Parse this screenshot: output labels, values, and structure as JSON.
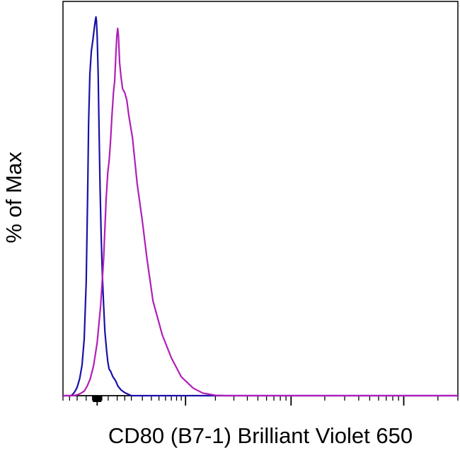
{
  "chart_data": {
    "type": "line",
    "title": "",
    "xlabel": "CD80 (B7-1) Brilliant Violet 650",
    "ylabel": "% of Max",
    "xscale": "log",
    "xlim": [
      -200,
      300000
    ],
    "ylim": [
      0,
      100
    ],
    "grid": false,
    "legend": "none",
    "series": [
      {
        "color": "#1a10a8",
        "points": [
          [
            -200,
            0
          ],
          [
            -140,
            0
          ],
          [
            -130,
            0.3
          ],
          [
            -115,
            1.0
          ],
          [
            -100,
            2.2
          ],
          [
            -85,
            4.5
          ],
          [
            -72,
            8
          ],
          [
            -60,
            15
          ],
          [
            -50,
            30
          ],
          [
            -42,
            55
          ],
          [
            -38,
            72
          ],
          [
            -32,
            85
          ],
          [
            -25,
            91
          ],
          [
            -18,
            94
          ],
          [
            -12,
            97
          ],
          [
            -8,
            99
          ],
          [
            -5,
            100
          ],
          [
            -3,
            99
          ],
          [
            0,
            95
          ],
          [
            4,
            85
          ],
          [
            8,
            70
          ],
          [
            12,
            55
          ],
          [
            17,
            42
          ],
          [
            22,
            32
          ],
          [
            28,
            24
          ],
          [
            34,
            17
          ],
          [
            42,
            12
          ],
          [
            48,
            9
          ],
          [
            55,
            7
          ],
          [
            62,
            6.5
          ],
          [
            75,
            5
          ],
          [
            90,
            4
          ],
          [
            105,
            2.5
          ],
          [
            125,
            1.5
          ],
          [
            150,
            0.8
          ],
          [
            180,
            0.3
          ],
          [
            200,
            0
          ],
          [
            300000,
            0
          ]
        ]
      },
      {
        "color": "#b01fb8",
        "points": [
          [
            -200,
            0
          ],
          [
            -130,
            0
          ],
          [
            -100,
            0.2
          ],
          [
            -80,
            0.6
          ],
          [
            -60,
            1.2
          ],
          [
            -45,
            2.5
          ],
          [
            -30,
            4.5
          ],
          [
            -15,
            8
          ],
          [
            0,
            14
          ],
          [
            15,
            24
          ],
          [
            28,
            36
          ],
          [
            40,
            52
          ],
          [
            48,
            59
          ],
          [
            55,
            62
          ],
          [
            62,
            67
          ],
          [
            70,
            74
          ],
          [
            78,
            80
          ],
          [
            85,
            83
          ],
          [
            92,
            90
          ],
          [
            98,
            95
          ],
          [
            103,
            97
          ],
          [
            108,
            95
          ],
          [
            115,
            88
          ],
          [
            125,
            84
          ],
          [
            135,
            81
          ],
          [
            150,
            80
          ],
          [
            165,
            78
          ],
          [
            180,
            74
          ],
          [
            210,
            68
          ],
          [
            250,
            56
          ],
          [
            300,
            46
          ],
          [
            350,
            36
          ],
          [
            420,
            25
          ],
          [
            550,
            16
          ],
          [
            700,
            10
          ],
          [
            900,
            5
          ],
          [
            1200,
            2
          ],
          [
            1500,
            0.7
          ],
          [
            2000,
            0.1
          ],
          [
            2500,
            0
          ],
          [
            300000,
            0
          ]
        ]
      }
    ],
    "ticks": {
      "major": [
        0,
        1000,
        10000,
        100000
      ],
      "minor": [
        -200,
        -150,
        -100,
        -50,
        -20,
        -10,
        10,
        20,
        50,
        100,
        150,
        200,
        300,
        400,
        500,
        600,
        700,
        800,
        900,
        2000,
        3000,
        4000,
        5000,
        6000,
        7000,
        8000,
        9000,
        20000,
        30000,
        40000,
        50000,
        60000,
        70000,
        80000,
        90000,
        200000,
        300000
      ],
      "dense_cluster": [
        -15,
        -12,
        -9,
        -6,
        -3,
        -1,
        1,
        3,
        6,
        9,
        12,
        15
      ]
    }
  }
}
